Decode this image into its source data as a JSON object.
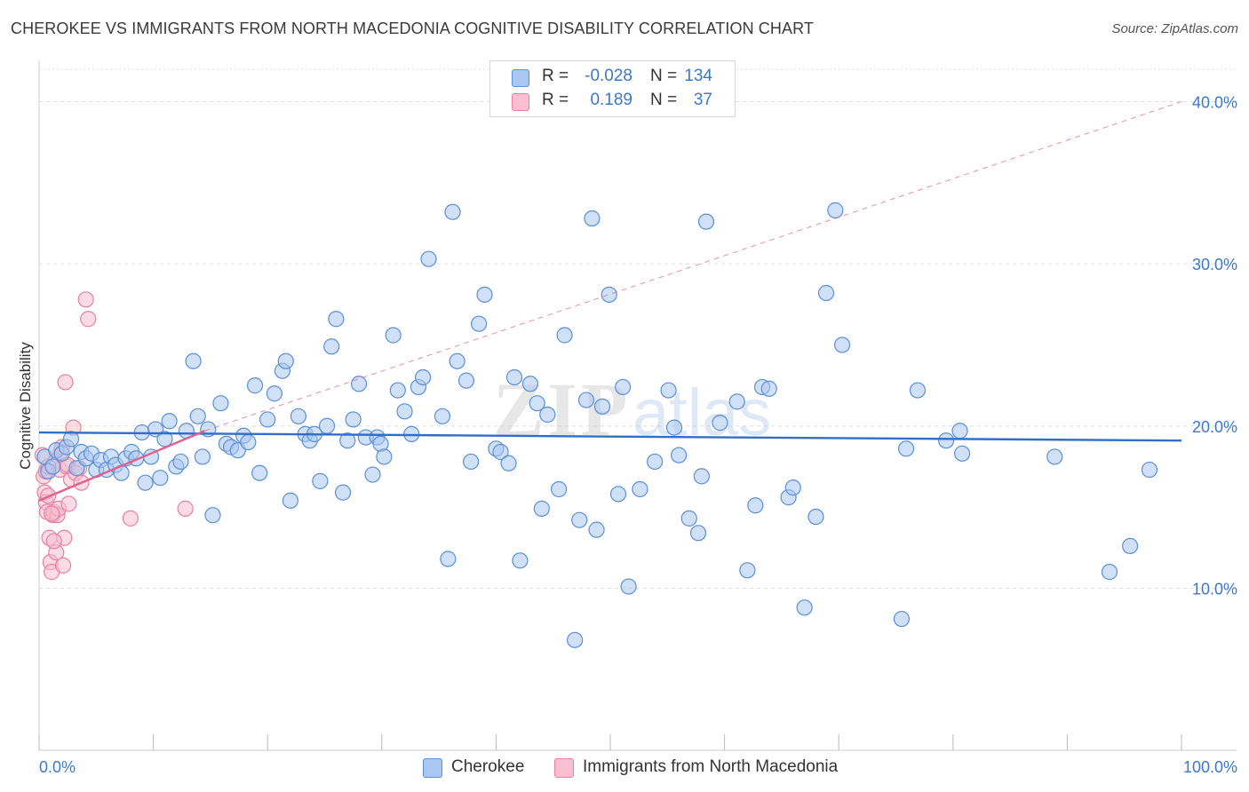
{
  "title": "CHEROKEE VS IMMIGRANTS FROM NORTH MACEDONIA COGNITIVE DISABILITY CORRELATION CHART",
  "source": "Source: ZipAtlas.com",
  "watermark": {
    "zip": "ZIP",
    "atlas": "atlas"
  },
  "legend": {
    "rows": [
      {
        "r_label": "R =",
        "r_value": "-0.028",
        "n_label": "N =",
        "n_value": "134"
      },
      {
        "r_label": "R =",
        "r_value": "0.189",
        "n_label": "N =",
        "n_value": "37"
      }
    ]
  },
  "bottom_legend": {
    "series_1": "Cherokee",
    "series_2": "Immigrants from North Macedonia"
  },
  "colors": {
    "blue_fill": "#a9c7f0",
    "blue_stroke": "#5b8fd6",
    "blue_line": "#2f6fc9",
    "pink_fill": "#f8bfd0",
    "pink_stroke": "#e880a2",
    "pink_line": "#e0608e",
    "tick_label": "#3a78d0",
    "grid": "#dddddd"
  },
  "chart_data": {
    "type": "scatter",
    "title": "CHEROKEE VS IMMIGRANTS FROM NORTH MACEDONIA COGNITIVE DISABILITY CORRELATION CHART",
    "xlabel": "",
    "ylabel": "Cognitive Disability",
    "xlim": [
      0,
      100
    ],
    "ylim": [
      0,
      42
    ],
    "x_tick_labels": [
      "0.0%",
      "100.0%"
    ],
    "y_ticks": [
      10,
      20,
      30,
      40
    ],
    "y_tick_labels": [
      "10.0%",
      "20.0%",
      "30.0%",
      "40.0%"
    ],
    "grid": true,
    "legend_position": "top-center",
    "series": [
      {
        "name": "Cherokee",
        "color": "#5b8fd6",
        "trend": {
          "x": [
            0,
            100
          ],
          "y": [
            19.6,
            19.1
          ],
          "style": "solid"
        },
        "points": [
          [
            0.5,
            18.1
          ],
          [
            0.8,
            17.2
          ],
          [
            1.2,
            17.5
          ],
          [
            1.5,
            18.5
          ],
          [
            2.0,
            18.3
          ],
          [
            2.4,
            18.7
          ],
          [
            2.8,
            19.2
          ],
          [
            3.3,
            17.4
          ],
          [
            3.7,
            18.4
          ],
          [
            4.1,
            18.0
          ],
          [
            4.6,
            18.3
          ],
          [
            5.0,
            17.3
          ],
          [
            5.4,
            17.9
          ],
          [
            5.9,
            17.3
          ],
          [
            6.3,
            18.1
          ],
          [
            6.7,
            17.6
          ],
          [
            7.2,
            17.1
          ],
          [
            7.6,
            18.0
          ],
          [
            8.1,
            18.4
          ],
          [
            8.5,
            18.0
          ],
          [
            9.0,
            19.6
          ],
          [
            9.3,
            16.5
          ],
          [
            9.8,
            18.1
          ],
          [
            10.2,
            19.8
          ],
          [
            10.6,
            16.8
          ],
          [
            11.0,
            19.2
          ],
          [
            11.4,
            20.3
          ],
          [
            12.0,
            17.5
          ],
          [
            12.4,
            17.8
          ],
          [
            12.9,
            19.7
          ],
          [
            13.5,
            24.0
          ],
          [
            13.9,
            20.6
          ],
          [
            14.3,
            18.1
          ],
          [
            14.8,
            19.8
          ],
          [
            15.2,
            14.5
          ],
          [
            15.9,
            21.4
          ],
          [
            16.4,
            18.9
          ],
          [
            16.8,
            18.7
          ],
          [
            17.4,
            18.5
          ],
          [
            17.9,
            19.4
          ],
          [
            18.3,
            19.0
          ],
          [
            18.9,
            22.5
          ],
          [
            19.3,
            17.1
          ],
          [
            20.0,
            20.4
          ],
          [
            20.6,
            22.0
          ],
          [
            21.3,
            23.4
          ],
          [
            21.6,
            24.0
          ],
          [
            22.0,
            15.4
          ],
          [
            22.7,
            20.6
          ],
          [
            23.3,
            19.5
          ],
          [
            23.7,
            19.1
          ],
          [
            24.1,
            19.5
          ],
          [
            24.6,
            16.6
          ],
          [
            25.2,
            20.0
          ],
          [
            25.6,
            24.9
          ],
          [
            26.0,
            26.6
          ],
          [
            26.6,
            15.9
          ],
          [
            27.0,
            19.1
          ],
          [
            27.5,
            20.4
          ],
          [
            28.0,
            22.6
          ],
          [
            28.6,
            19.3
          ],
          [
            29.2,
            17.0
          ],
          [
            29.6,
            19.3
          ],
          [
            29.9,
            18.9
          ],
          [
            30.2,
            18.1
          ],
          [
            31.0,
            25.6
          ],
          [
            31.4,
            22.2
          ],
          [
            32.0,
            20.9
          ],
          [
            32.6,
            19.5
          ],
          [
            33.2,
            22.4
          ],
          [
            33.6,
            23.0
          ],
          [
            34.1,
            30.3
          ],
          [
            35.3,
            20.6
          ],
          [
            35.8,
            11.8
          ],
          [
            36.2,
            33.2
          ],
          [
            36.6,
            24.0
          ],
          [
            37.4,
            22.8
          ],
          [
            37.8,
            17.8
          ],
          [
            38.5,
            26.3
          ],
          [
            39.0,
            28.1
          ],
          [
            40.0,
            18.6
          ],
          [
            40.4,
            18.4
          ],
          [
            41.1,
            17.7
          ],
          [
            41.6,
            23.0
          ],
          [
            42.1,
            11.7
          ],
          [
            43.0,
            22.6
          ],
          [
            43.6,
            21.4
          ],
          [
            44.0,
            14.9
          ],
          [
            44.5,
            20.7
          ],
          [
            45.5,
            16.1
          ],
          [
            46.0,
            25.6
          ],
          [
            46.9,
            6.8
          ],
          [
            47.3,
            14.2
          ],
          [
            47.9,
            21.6
          ],
          [
            48.4,
            32.8
          ],
          [
            48.8,
            13.6
          ],
          [
            49.3,
            21.2
          ],
          [
            49.9,
            28.1
          ],
          [
            50.7,
            15.8
          ],
          [
            51.1,
            22.4
          ],
          [
            51.6,
            10.1
          ],
          [
            52.6,
            16.1
          ],
          [
            53.9,
            17.8
          ],
          [
            55.1,
            22.2
          ],
          [
            55.6,
            19.9
          ],
          [
            56.0,
            18.2
          ],
          [
            56.9,
            14.3
          ],
          [
            57.7,
            13.4
          ],
          [
            58.0,
            16.9
          ],
          [
            58.4,
            32.6
          ],
          [
            59.6,
            20.2
          ],
          [
            61.1,
            21.5
          ],
          [
            62.0,
            11.1
          ],
          [
            62.7,
            15.1
          ],
          [
            63.3,
            22.4
          ],
          [
            63.9,
            22.3
          ],
          [
            65.6,
            15.6
          ],
          [
            66.0,
            16.2
          ],
          [
            67.0,
            8.8
          ],
          [
            68.0,
            14.4
          ],
          [
            68.9,
            28.2
          ],
          [
            69.7,
            33.3
          ],
          [
            70.3,
            25.0
          ],
          [
            75.5,
            8.1
          ],
          [
            75.9,
            18.6
          ],
          [
            76.9,
            22.2
          ],
          [
            79.4,
            19.1
          ],
          [
            80.6,
            19.7
          ],
          [
            80.8,
            18.3
          ],
          [
            88.9,
            18.1
          ],
          [
            93.7,
            11.0
          ],
          [
            95.5,
            12.6
          ],
          [
            97.2,
            17.3
          ]
        ]
      },
      {
        "name": "Immigrants from North Macedonia",
        "color": "#e880a2",
        "trend": {
          "x": [
            0,
            14.5,
            100
          ],
          "y": [
            15.4,
            19.7,
            40.0
          ],
          "style": "solid-then-dashed"
        },
        "points": [
          [
            0.3,
            18.2
          ],
          [
            0.4,
            16.9
          ],
          [
            0.5,
            15.9
          ],
          [
            0.6,
            15.3
          ],
          [
            0.7,
            14.7
          ],
          [
            0.8,
            15.7
          ],
          [
            0.9,
            13.1
          ],
          [
            1.0,
            11.6
          ],
          [
            1.1,
            11.0
          ],
          [
            1.2,
            14.5
          ],
          [
            1.3,
            14.7
          ],
          [
            1.4,
            17.8
          ],
          [
            1.5,
            12.2
          ],
          [
            1.6,
            14.5
          ],
          [
            1.7,
            14.9
          ],
          [
            1.8,
            17.3
          ],
          [
            1.9,
            18.4
          ],
          [
            2.0,
            18.7
          ],
          [
            2.1,
            11.4
          ],
          [
            2.2,
            13.1
          ],
          [
            2.3,
            22.7
          ],
          [
            2.4,
            17.5
          ],
          [
            2.5,
            17.6
          ],
          [
            2.6,
            15.2
          ],
          [
            2.8,
            16.7
          ],
          [
            3.0,
            19.9
          ],
          [
            3.2,
            17.1
          ],
          [
            3.5,
            17.4
          ],
          [
            3.7,
            16.5
          ],
          [
            4.1,
            27.8
          ],
          [
            4.3,
            26.6
          ],
          [
            8.0,
            14.3
          ],
          [
            12.8,
            14.9
          ],
          [
            0.6,
            17.2
          ],
          [
            0.8,
            17.5
          ],
          [
            1.1,
            14.6
          ],
          [
            1.3,
            12.9
          ]
        ]
      }
    ]
  }
}
